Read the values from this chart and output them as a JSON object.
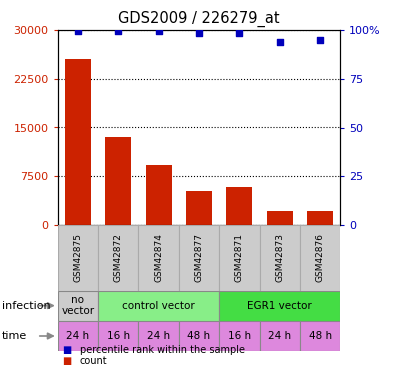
{
  "title": "GDS2009 / 226279_at",
  "samples": [
    "GSM42875",
    "GSM42872",
    "GSM42874",
    "GSM42877",
    "GSM42871",
    "GSM42873",
    "GSM42876"
  ],
  "counts": [
    25500,
    13500,
    9200,
    5200,
    5800,
    2200,
    2100
  ],
  "percentile_ranks": [
    99.5,
    99.5,
    99.5,
    98.5,
    98.5,
    94,
    95
  ],
  "ylim_left": [
    0,
    30000
  ],
  "ylim_right": [
    0,
    100
  ],
  "yticks_left": [
    0,
    7500,
    15000,
    22500,
    30000
  ],
  "yticks_left_labels": [
    "0",
    "7500",
    "15000",
    "22500",
    "30000"
  ],
  "yticks_right": [
    0,
    25,
    50,
    75,
    100
  ],
  "yticks_right_labels": [
    "0",
    "25",
    "50",
    "75",
    "100%"
  ],
  "bar_color": "#cc2200",
  "dot_color": "#0000bb",
  "infection_groups": [
    {
      "label": "no\nvector",
      "start": 0,
      "end": 1,
      "color": "#cccccc"
    },
    {
      "label": "control vector",
      "start": 1,
      "end": 4,
      "color": "#88ee88"
    },
    {
      "label": "EGR1 vector",
      "start": 4,
      "end": 7,
      "color": "#44dd44"
    }
  ],
  "time_labels": [
    "24 h",
    "16 h",
    "24 h",
    "48 h",
    "16 h",
    "24 h",
    "48 h"
  ],
  "time_color": "#dd88dd",
  "sample_box_color": "#cccccc",
  "legend_items": [
    {
      "label": "count",
      "color": "#cc2200"
    },
    {
      "label": "percentile rank within the sample",
      "color": "#0000bb"
    }
  ],
  "row_label_infection": "infection",
  "row_label_time": "time",
  "arrow_color": "#888888"
}
